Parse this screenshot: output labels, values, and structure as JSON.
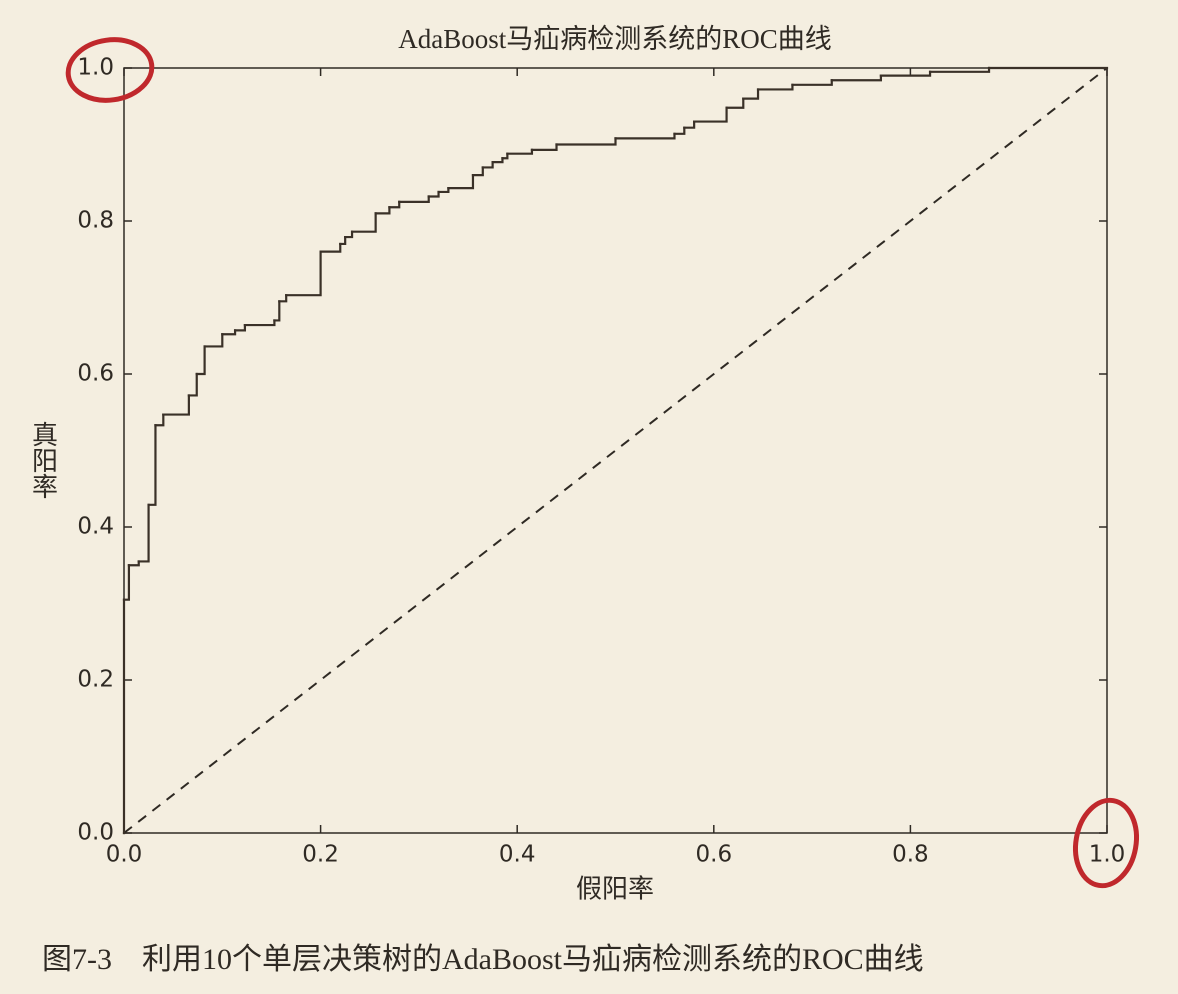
{
  "chart_data": {
    "type": "step",
    "title": "AdaBoost马疝病检测系统的ROC曲线",
    "xlabel": "假阳率",
    "ylabel": "真阳率",
    "caption": "图7-3　利用10个单层决策树的AdaBoost马疝病检测系统的ROC曲线",
    "x": [
      0,
      0,
      0.005,
      0.015,
      0.025,
      0.032,
      0.04,
      0.066,
      0.074,
      0.082,
      0.1,
      0.113,
      0.123,
      0.153,
      0.158,
      0.165,
      0.2,
      0.22,
      0.225,
      0.232,
      0.256,
      0.27,
      0.28,
      0.31,
      0.32,
      0.33,
      0.355,
      0.365,
      0.375,
      0.385,
      0.39,
      0.415,
      0.44,
      0.5,
      0.56,
      0.57,
      0.58,
      0.613,
      0.63,
      0.645,
      0.68,
      0.72,
      0.77,
      0.82,
      0.88,
      1
    ],
    "values": [
      0,
      0.305,
      0.35,
      0.355,
      0.429,
      0.533,
      0.547,
      0.572,
      0.6,
      0.636,
      0.652,
      0.657,
      0.664,
      0.67,
      0.695,
      0.703,
      0.76,
      0.77,
      0.779,
      0.786,
      0.81,
      0.818,
      0.825,
      0.832,
      0.838,
      0.843,
      0.86,
      0.87,
      0.877,
      0.882,
      0.888,
      0.893,
      0.9,
      0.908,
      0.914,
      0.922,
      0.93,
      0.948,
      0.96,
      0.972,
      0.978,
      0.984,
      0.99,
      0.995,
      1,
      1
    ],
    "color": "#3a3128",
    "reference_line": {
      "x": [
        0,
        1
      ],
      "values": [
        0,
        1
      ],
      "style": "dashed"
    },
    "xlim": [
      0,
      1
    ],
    "ylim": [
      0,
      1
    ],
    "xticks": [
      {
        "value": 0,
        "label": "0.0"
      },
      {
        "value": 0.2,
        "label": "0.2"
      },
      {
        "value": 0.4,
        "label": "0.4"
      },
      {
        "value": 0.6,
        "label": "0.6"
      },
      {
        "value": 0.8,
        "label": "0.8"
      },
      {
        "value": 1,
        "label": "1.0"
      }
    ],
    "yticks": [
      {
        "value": 0,
        "label": "0.0"
      },
      {
        "value": 0.2,
        "label": "0.2"
      },
      {
        "value": 0.4,
        "label": "0.4"
      },
      {
        "value": 0.6,
        "label": "0.6"
      },
      {
        "value": 0.8,
        "label": "0.8"
      },
      {
        "value": 1,
        "label": "1.0"
      }
    ],
    "grid": false
  }
}
